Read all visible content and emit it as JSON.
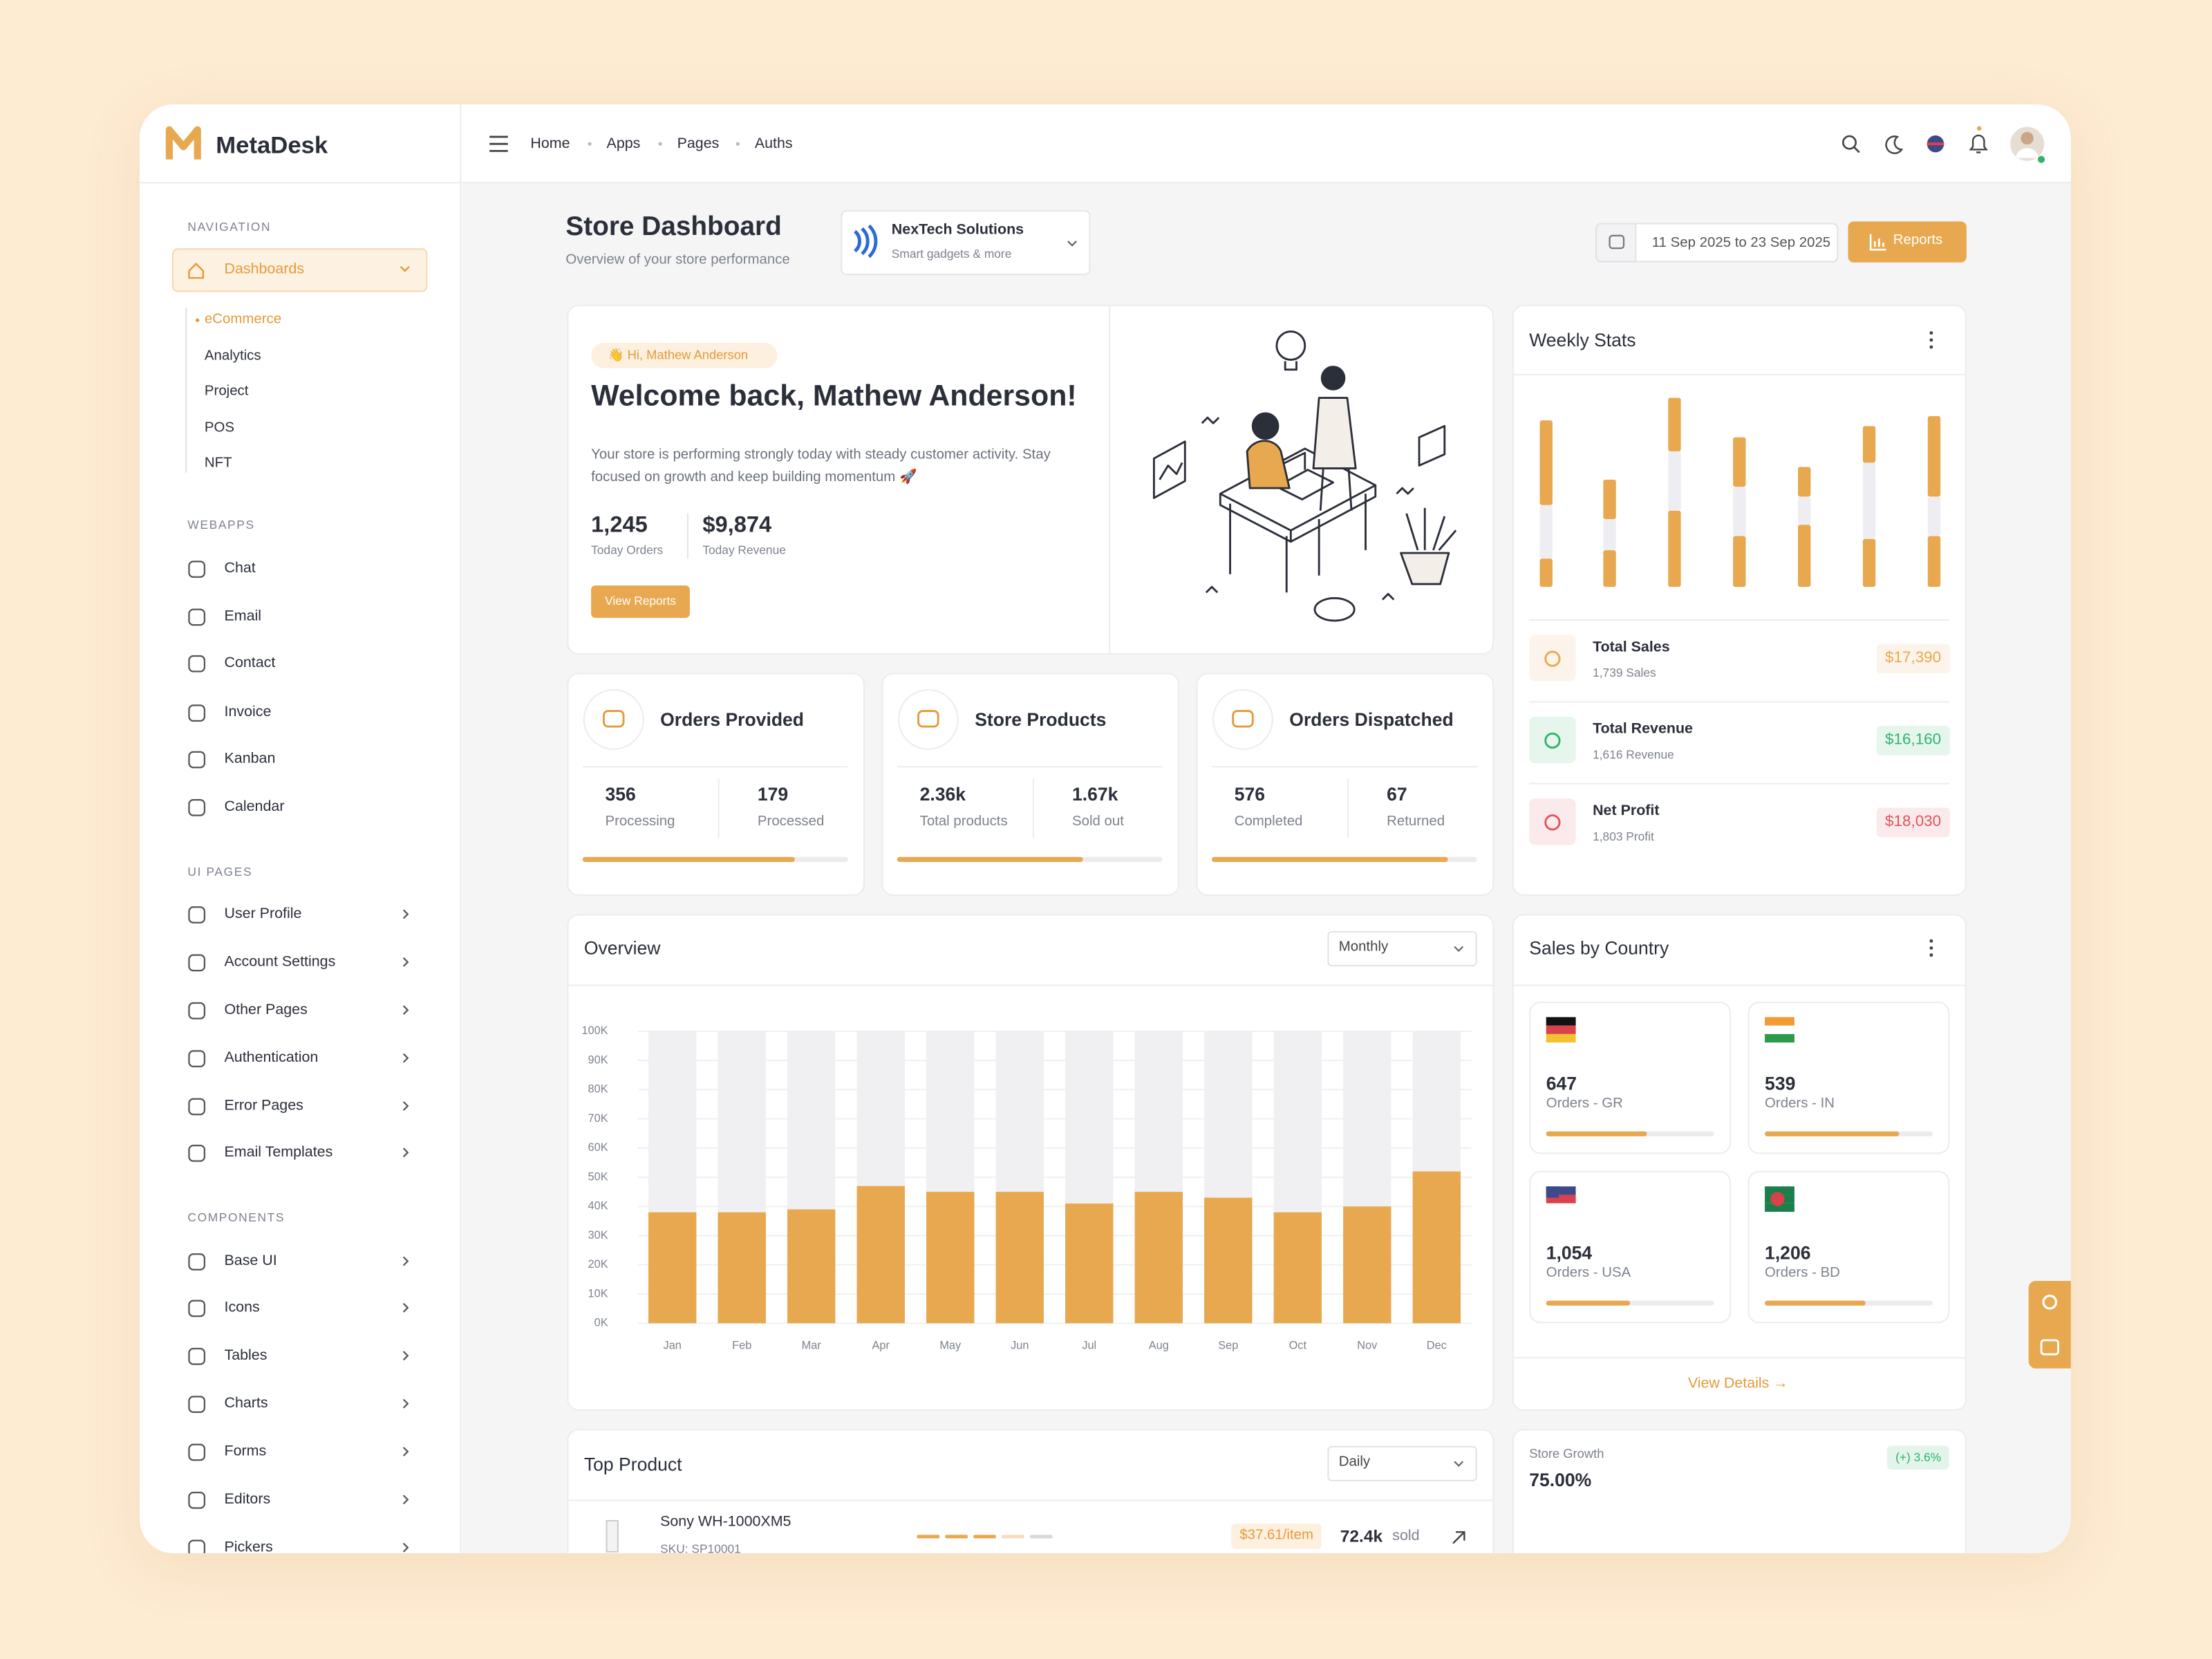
{
  "brand": "MetaDesk",
  "topnav": [
    "Home",
    "Apps",
    "Pages",
    "Auths"
  ],
  "sidebar": [
    {
      "title": "NAVIGATION",
      "items": [
        {
          "label": "Dashboards",
          "children": [
            "eCommerce",
            "Analytics",
            "Project",
            "POS",
            "NFT"
          ]
        }
      ]
    },
    {
      "title": "WEBAPPS",
      "items": [
        {
          "label": "Chat"
        },
        {
          "label": "Email"
        },
        {
          "label": "Contact"
        },
        {
          "label": "Invoice"
        },
        {
          "label": "Kanban"
        },
        {
          "label": "Calendar"
        }
      ]
    },
    {
      "title": "UI PAGES",
      "items": [
        {
          "label": "User Profile"
        },
        {
          "label": "Account Settings"
        },
        {
          "label": "Other Pages"
        },
        {
          "label": "Authentication"
        },
        {
          "label": "Error Pages"
        },
        {
          "label": "Email Templates"
        }
      ]
    },
    {
      "title": "COMPONENTS",
      "items": [
        {
          "label": "Base UI"
        },
        {
          "label": "Icons"
        },
        {
          "label": "Tables"
        },
        {
          "label": "Charts"
        },
        {
          "label": "Forms"
        },
        {
          "label": "Editors"
        },
        {
          "label": "Pickers"
        }
      ]
    }
  ],
  "header": {
    "title": "Store Dashboard",
    "subtitle": "Overview of your store performance",
    "store": {
      "name": "NexTech Solutions",
      "tagline": "Smart gadgets & more"
    },
    "date_range": "11 Sep 2025 to 23 Sep 2025",
    "button": "Reports"
  },
  "welcome": {
    "badge": "👋 Hi, Mathew Anderson",
    "title": "Welcome back, Mathew Anderson!",
    "text": "Your store is performing strongly today with steady customer activity. Stay focused on growth and keep building momentum 🚀",
    "stats": [
      {
        "value": "1,245",
        "label": "Today Orders"
      },
      {
        "value": "$9,874",
        "label": "Today Revenue"
      }
    ],
    "button": "View Reports"
  },
  "stat_cards": [
    {
      "title": "Orders Provided",
      "stats": [
        {
          "value": "356",
          "label": "Processing"
        },
        {
          "value": "179",
          "label": "Processed"
        }
      ],
      "progress": 80
    },
    {
      "title": "Store Products",
      "stats": [
        {
          "value": "2.36k",
          "label": "Total products"
        },
        {
          "value": "1.67k",
          "label": "Sold out"
        }
      ],
      "progress": 70
    },
    {
      "title": "Orders Dispatched",
      "stats": [
        {
          "value": "576",
          "label": "Completed"
        },
        {
          "value": "67",
          "label": "Returned"
        }
      ],
      "progress": 89
    }
  ],
  "chart_data": [
    {
      "type": "bar",
      "title": "Weekly Stats",
      "stacked": true,
      "categories": [
        null,
        null,
        null,
        null,
        null,
        null,
        null
      ],
      "series": [
        {
          "color": "#e8a84f",
          "values": [
            20,
            26,
            54,
            36,
            44,
            34,
            36
          ]
        },
        {
          "color": "#eeeef2",
          "values": [
            38,
            22,
            42,
            35,
            20,
            54,
            28
          ]
        },
        {
          "color": "#e8a84f",
          "values": [
            60,
            28,
            38,
            35,
            21,
            26,
            57
          ]
        }
      ],
      "ylim": [
        0,
        140
      ]
    },
    {
      "type": "bar",
      "title": "Overview",
      "filter": "Monthly",
      "categories": [
        "Jan",
        "Feb",
        "Mar",
        "Apr",
        "May",
        "Jun",
        "Jul",
        "Aug",
        "Sep",
        "Oct",
        "Nov",
        "Dec"
      ],
      "values": [
        38000,
        38000,
        39000,
        47000,
        45000,
        45000,
        41000,
        45000,
        43000,
        38000,
        40000,
        52000
      ],
      "color": "#e8a84f",
      "ylim": [
        0,
        100000
      ],
      "yticks": [
        {
          "value": 0,
          "label": "0K"
        },
        {
          "value": 10000,
          "label": "10K"
        },
        {
          "value": 20000,
          "label": "20K"
        },
        {
          "value": 30000,
          "label": "30K"
        },
        {
          "value": 40000,
          "label": "40K"
        },
        {
          "value": 50000,
          "label": "50K"
        },
        {
          "value": 60000,
          "label": "60K"
        },
        {
          "value": 70000,
          "label": "70K"
        },
        {
          "value": 80000,
          "label": "80K"
        },
        {
          "value": 90000,
          "label": "90K"
        },
        {
          "value": 100000,
          "label": "100K"
        }
      ],
      "grid": true
    }
  ],
  "weekly_summary": [
    {
      "title": "Total Sales",
      "sub": "1,739 Sales",
      "amount": "$17,390",
      "color": "#e8a84f"
    },
    {
      "title": "Total Revenue",
      "sub": "1,616 Revenue",
      "amount": "$16,160",
      "color": "#2fb36b"
    },
    {
      "title": "Net Profit",
      "sub": "1,803 Profit",
      "amount": "$18,030",
      "color": "#e0525e"
    }
  ],
  "sales_by_country": {
    "title": "Sales by Country",
    "items": [
      {
        "value": "647",
        "label": "Orders - GR",
        "progress": 60
      },
      {
        "value": "539",
        "label": "Orders - IN",
        "progress": 80
      },
      {
        "value": "1,054",
        "label": "Orders - USA",
        "progress": 50
      },
      {
        "value": "1,206",
        "label": "Orders - BD",
        "progress": 60
      }
    ],
    "link": "View Details →"
  },
  "store_growth": {
    "label": "Store Growth",
    "value": "75.00%",
    "change": "(+) 3.6%"
  },
  "top_product": {
    "title": "Top Product",
    "filter": "Daily",
    "items": [
      {
        "name": "Sony WH-1000XM5",
        "sku": "SKU: SP10001",
        "price": "$37.61/item",
        "sold": "72.4k",
        "sold_label": "sold"
      }
    ]
  }
}
